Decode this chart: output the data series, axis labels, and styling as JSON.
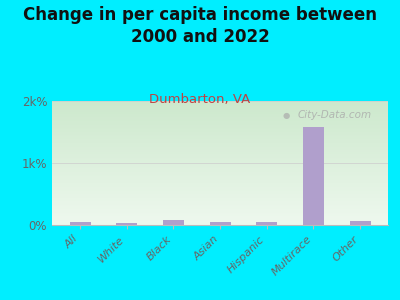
{
  "title": "Change in per capita income between\n2000 and 2022",
  "subtitle": "Dumbarton, VA",
  "categories": [
    "All",
    "White",
    "Black",
    "Asian",
    "Hispanic",
    "Multirace",
    "Other"
  ],
  "values": [
    55,
    30,
    75,
    48,
    50,
    1580,
    58
  ],
  "bar_color": "#b09fcc",
  "bg_outer": "#00eeff",
  "bg_plot_top": "#cce8cc",
  "bg_plot_bottom": "#eef8ee",
  "title_fontsize": 12,
  "subtitle_fontsize": 9.5,
  "subtitle_color": "#bb4444",
  "title_color": "#111111",
  "tick_color": "#666666",
  "ylim": [
    0,
    2000
  ],
  "yticks": [
    0,
    1000,
    2000
  ],
  "ytick_labels": [
    "0%",
    "1k%",
    "2k%"
  ],
  "watermark": "City-Data.com"
}
